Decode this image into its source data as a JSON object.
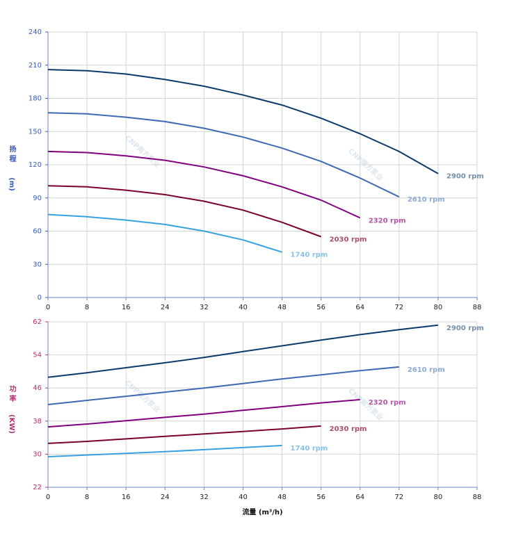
{
  "chart_data": [
    {
      "type": "line",
      "ylabel": "扬程",
      "yunit": "(m)",
      "xlim": [
        0,
        88
      ],
      "xticks": [
        0,
        8,
        16,
        24,
        32,
        40,
        48,
        56,
        64,
        72,
        80,
        88
      ],
      "ylim": [
        0,
        240
      ],
      "yticks": [
        0,
        30,
        60,
        90,
        120,
        150,
        180,
        210,
        240
      ],
      "grid": true,
      "watermark": "CNP南方泵业",
      "series": [
        {
          "name": "2900 rpm",
          "color": "#0a3a6b",
          "label_color": "#7391ab",
          "x": [
            0,
            8,
            16,
            24,
            32,
            40,
            48,
            56,
            64,
            72,
            80
          ],
          "values": [
            206,
            205,
            202,
            197,
            191,
            183,
            174,
            162,
            148,
            132,
            112
          ]
        },
        {
          "name": "2610 rpm",
          "color": "#3d69b3",
          "label_color": "#8ea9d6",
          "x": [
            0,
            8,
            16,
            24,
            32,
            40,
            48,
            56,
            64,
            72
          ],
          "values": [
            167,
            166,
            163,
            159,
            153,
            145,
            135,
            123,
            108,
            91
          ]
        },
        {
          "name": "2320 rpm",
          "color": "#800080",
          "label_color": "#b355a6",
          "x": [
            0,
            8,
            16,
            24,
            32,
            40,
            48,
            56,
            64
          ],
          "values": [
            132,
            131,
            128,
            124,
            118,
            110,
            100,
            88,
            72
          ]
        },
        {
          "name": "2030 rpm",
          "color": "#7a0030",
          "label_color": "#a85068",
          "x": [
            0,
            8,
            16,
            24,
            32,
            40,
            48,
            56
          ],
          "values": [
            101,
            100,
            97,
            93,
            87,
            79,
            68,
            55
          ]
        },
        {
          "name": "1740 rpm",
          "color": "#35a2e0",
          "label_color": "#84c2e9",
          "x": [
            0,
            8,
            16,
            24,
            32,
            40,
            48
          ],
          "values": [
            75,
            73,
            70,
            66,
            60,
            52,
            41
          ]
        }
      ]
    },
    {
      "type": "line",
      "ylabel": "功率",
      "yunit": "(KW)",
      "xlabel": "流量 (m³/h)",
      "xlim": [
        0,
        88
      ],
      "xticks": [
        0,
        8,
        16,
        24,
        32,
        40,
        48,
        56,
        64,
        72,
        80,
        88
      ],
      "ylim": [
        22,
        62
      ],
      "yticks": [
        22,
        30,
        38,
        46,
        54,
        62
      ],
      "grid": true,
      "watermark": "CNP南方泵业",
      "series": [
        {
          "name": "2900 rpm",
          "color": "#0a3a6b",
          "label_color": "#7391ab",
          "x": [
            0,
            8,
            16,
            24,
            32,
            40,
            48,
            56,
            64,
            72,
            80
          ],
          "values": [
            48.6,
            49.7,
            50.9,
            52.1,
            53.4,
            54.8,
            56.2,
            57.6,
            58.9,
            60.1,
            61.2
          ]
        },
        {
          "name": "2610 rpm",
          "color": "#3d69b3",
          "label_color": "#8ea9d6",
          "x": [
            0,
            8,
            16,
            24,
            32,
            40,
            48,
            56,
            64,
            72
          ],
          "values": [
            42,
            43,
            44,
            45,
            46,
            47.1,
            48.2,
            49.2,
            50.2,
            51.1
          ]
        },
        {
          "name": "2320 rpm",
          "color": "#800080",
          "label_color": "#b355a6",
          "x": [
            0,
            8,
            16,
            24,
            32,
            40,
            48,
            56,
            64
          ],
          "values": [
            36.6,
            37.3,
            38.1,
            38.9,
            39.7,
            40.6,
            41.5,
            42.4,
            43.2
          ]
        },
        {
          "name": "2030 rpm",
          "color": "#7a0030",
          "label_color": "#a85068",
          "x": [
            0,
            8,
            16,
            24,
            32,
            40,
            48,
            56
          ],
          "values": [
            32.6,
            33.1,
            33.7,
            34.3,
            34.9,
            35.5,
            36.1,
            36.8
          ]
        },
        {
          "name": "1740 rpm",
          "color": "#35a2e0",
          "label_color": "#84c2e9",
          "x": [
            0,
            8,
            16,
            24,
            32,
            40,
            48
          ],
          "values": [
            29.4,
            29.8,
            30.2,
            30.6,
            31.1,
            31.6,
            32.1
          ]
        }
      ]
    }
  ]
}
